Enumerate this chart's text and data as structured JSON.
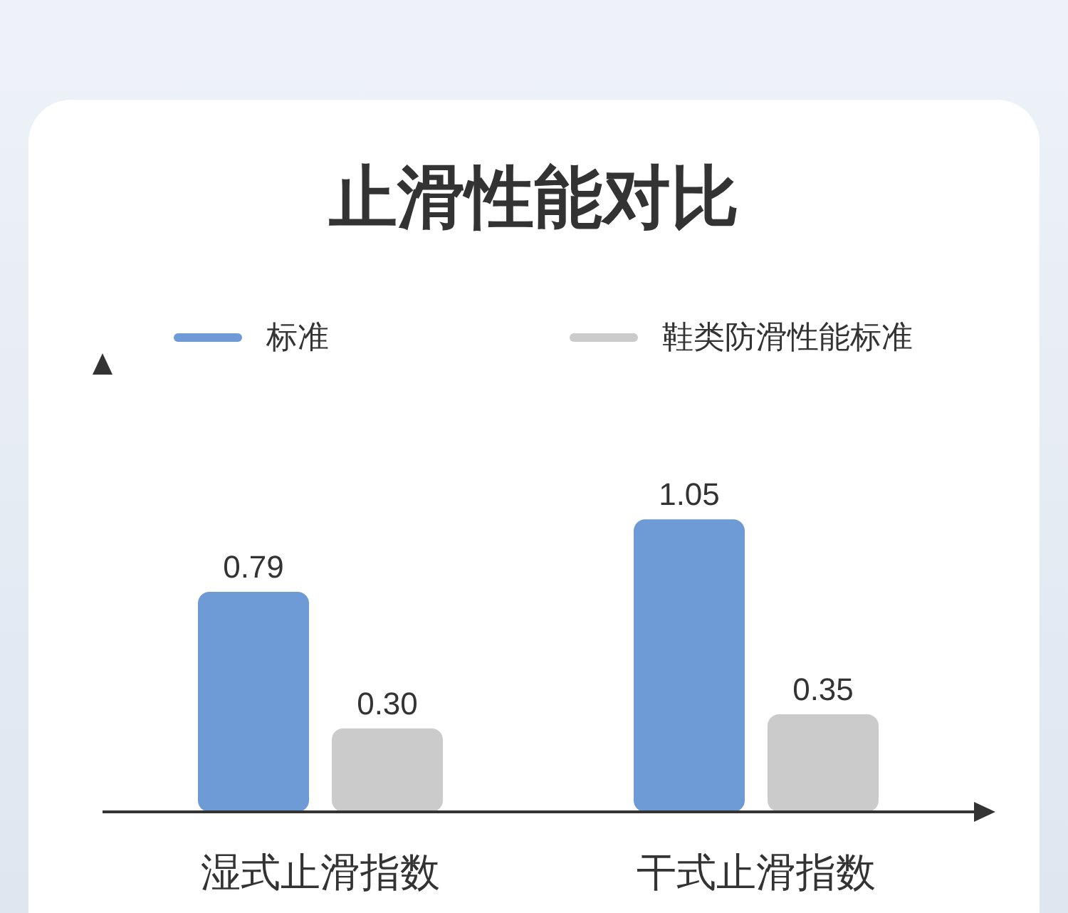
{
  "chart_data": {
    "type": "bar",
    "title": "止滑性能对比",
    "categories": [
      "湿式止滑指数",
      "干式止滑指数"
    ],
    "series": [
      {
        "name": "标准",
        "color": "#6e9bd5",
        "values": [
          0.79,
          1.05
        ],
        "value_labels": [
          "0.79",
          "1.05"
        ]
      },
      {
        "name": "鞋类防滑性能标准",
        "color": "#cbcbcb",
        "values": [
          0.3,
          0.35
        ],
        "value_labels": [
          "0.30",
          "0.35"
        ]
      }
    ],
    "legend": "top",
    "tick_labels": "x"
  }
}
